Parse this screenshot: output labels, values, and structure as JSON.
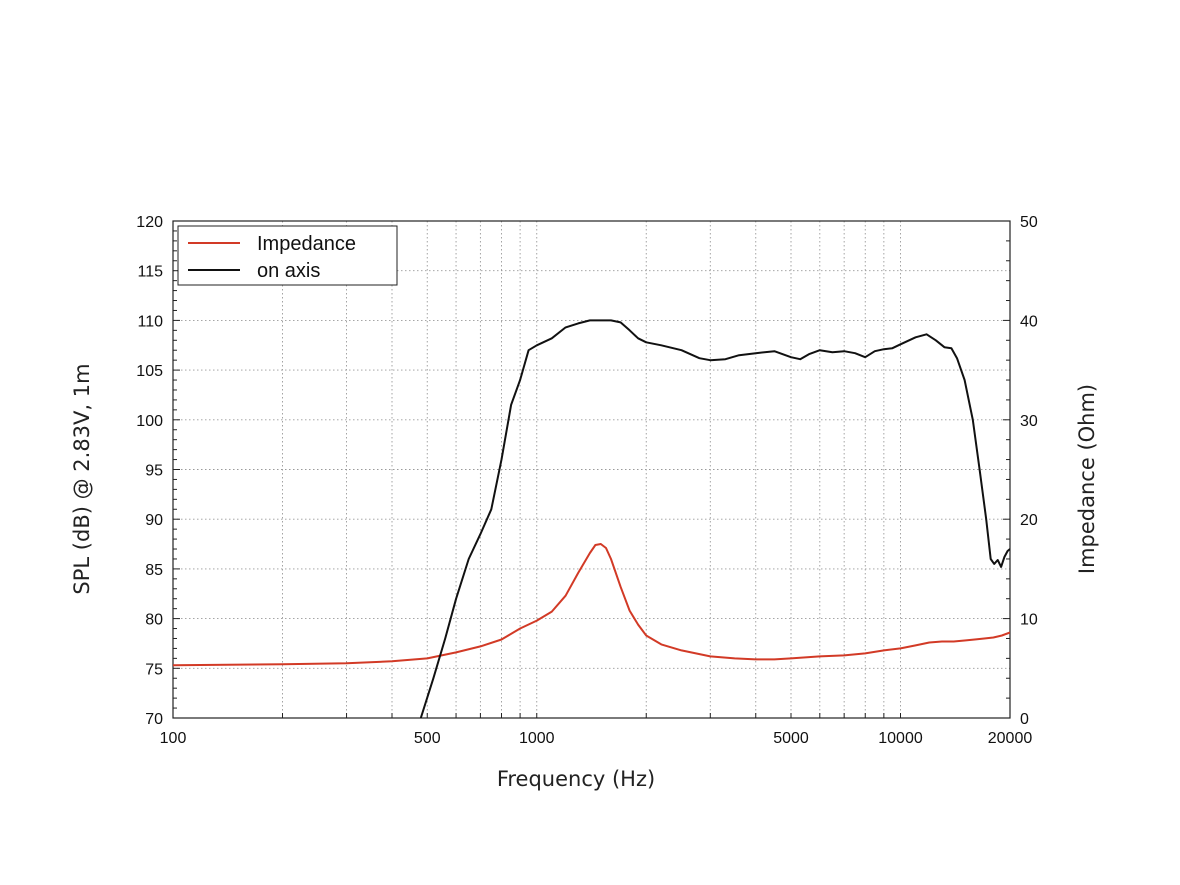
{
  "chart_data": {
    "type": "line",
    "title": "",
    "xlabel": "Frequency (Hz)",
    "ylabel": "SPL (dB) @ 2.83V, 1m",
    "y2label": "Impedance (Ohm)",
    "xscale": "log",
    "xlim": [
      100,
      20000
    ],
    "ylim": [
      70,
      120
    ],
    "y2lim": [
      0,
      50
    ],
    "grid": true,
    "legend": "top-left",
    "x_tick_labels": [
      "100",
      "500",
      "1000",
      "5000",
      "10000",
      "20000"
    ],
    "x_tick_values": [
      100,
      500,
      1000,
      5000,
      10000,
      20000
    ],
    "y_tick_labels": [
      "70",
      "75",
      "80",
      "85",
      "90",
      "95",
      "100",
      "105",
      "110",
      "115",
      "120"
    ],
    "y2_tick_labels": [
      "0",
      "10",
      "20",
      "30",
      "40",
      "50"
    ],
    "series": [
      {
        "name": "Impedance",
        "color": "#d23a26",
        "axis": "right",
        "points": [
          [
            100,
            5.3
          ],
          [
            200,
            5.4
          ],
          [
            300,
            5.5
          ],
          [
            400,
            5.7
          ],
          [
            500,
            6.0
          ],
          [
            600,
            6.6
          ],
          [
            700,
            7.2
          ],
          [
            800,
            7.9
          ],
          [
            900,
            9.0
          ],
          [
            1000,
            9.8
          ],
          [
            1100,
            10.7
          ],
          [
            1200,
            12.3
          ],
          [
            1300,
            14.6
          ],
          [
            1400,
            16.6
          ],
          [
            1450,
            17.4
          ],
          [
            1500,
            17.5
          ],
          [
            1550,
            17.1
          ],
          [
            1600,
            16.0
          ],
          [
            1700,
            13.2
          ],
          [
            1800,
            10.8
          ],
          [
            1900,
            9.4
          ],
          [
            2000,
            8.3
          ],
          [
            2200,
            7.4
          ],
          [
            2500,
            6.8
          ],
          [
            3000,
            6.2
          ],
          [
            3500,
            6.0
          ],
          [
            4000,
            5.9
          ],
          [
            4500,
            5.9
          ],
          [
            5000,
            6.0
          ],
          [
            6000,
            6.2
          ],
          [
            7000,
            6.3
          ],
          [
            8000,
            6.5
          ],
          [
            9000,
            6.8
          ],
          [
            10000,
            7.0
          ],
          [
            11000,
            7.3
          ],
          [
            12000,
            7.6
          ],
          [
            13000,
            7.7
          ],
          [
            14000,
            7.7
          ],
          [
            15000,
            7.8
          ],
          [
            16000,
            7.9
          ],
          [
            17000,
            8.0
          ],
          [
            18000,
            8.1
          ],
          [
            19000,
            8.3
          ],
          [
            20000,
            8.6
          ]
        ]
      },
      {
        "name": "on axis",
        "color": "#111111",
        "axis": "left",
        "points": [
          [
            480,
            70.0
          ],
          [
            520,
            74.0
          ],
          [
            560,
            78.0
          ],
          [
            600,
            82.0
          ],
          [
            650,
            86.0
          ],
          [
            700,
            88.5
          ],
          [
            750,
            91.0
          ],
          [
            800,
            96.0
          ],
          [
            850,
            101.5
          ],
          [
            900,
            104.0
          ],
          [
            950,
            107.0
          ],
          [
            1000,
            107.5
          ],
          [
            1100,
            108.2
          ],
          [
            1200,
            109.3
          ],
          [
            1300,
            109.7
          ],
          [
            1400,
            110.0
          ],
          [
            1500,
            110.0
          ],
          [
            1600,
            110.0
          ],
          [
            1700,
            109.8
          ],
          [
            1800,
            109.0
          ],
          [
            1900,
            108.2
          ],
          [
            2000,
            107.8
          ],
          [
            2200,
            107.5
          ],
          [
            2500,
            107.0
          ],
          [
            2800,
            106.2
          ],
          [
            3000,
            106.0
          ],
          [
            3300,
            106.1
          ],
          [
            3600,
            106.5
          ],
          [
            4000,
            106.7
          ],
          [
            4500,
            106.9
          ],
          [
            5000,
            106.3
          ],
          [
            5300,
            106.1
          ],
          [
            5600,
            106.6
          ],
          [
            6000,
            107.0
          ],
          [
            6500,
            106.8
          ],
          [
            7000,
            106.9
          ],
          [
            7500,
            106.7
          ],
          [
            8000,
            106.3
          ],
          [
            8500,
            106.9
          ],
          [
            9000,
            107.1
          ],
          [
            9500,
            107.2
          ],
          [
            10000,
            107.6
          ],
          [
            11000,
            108.3
          ],
          [
            11800,
            108.6
          ],
          [
            12500,
            108.0
          ],
          [
            13200,
            107.3
          ],
          [
            13800,
            107.2
          ],
          [
            14300,
            106.2
          ],
          [
            15000,
            104.0
          ],
          [
            15800,
            100.0
          ],
          [
            16500,
            95.0
          ],
          [
            17200,
            90.0
          ],
          [
            17700,
            86.0
          ],
          [
            18100,
            85.5
          ],
          [
            18500,
            85.9
          ],
          [
            18900,
            85.2
          ],
          [
            19300,
            86.2
          ],
          [
            19700,
            86.8
          ],
          [
            20000,
            87.0
          ]
        ]
      }
    ]
  }
}
